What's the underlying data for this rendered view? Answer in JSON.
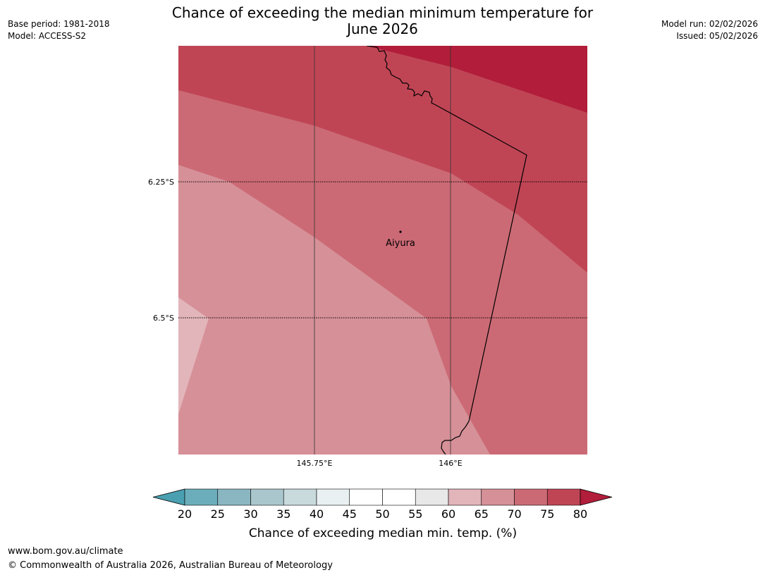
{
  "title_line1": "Chance of exceeding the median minimum temperature for",
  "title_line2": "June 2026",
  "meta_left": {
    "base_period": "Base period: 1981-2018",
    "model": "Model: ACCESS-S2"
  },
  "meta_right": {
    "model_run": "Model run: 02/02/2026",
    "issued": "Issued: 05/02/2026"
  },
  "map": {
    "lat_ticks": [
      "6.25°S",
      "6.5°S"
    ],
    "lon_ticks": [
      "145.75°E",
      "146°E"
    ],
    "place": "Aiyura"
  },
  "colorbar": {
    "label": "Chance of exceeding median min. temp. (%)",
    "ticks": [
      "20",
      "25",
      "30",
      "35",
      "40",
      "45",
      "50",
      "55",
      "60",
      "65",
      "70",
      "75",
      "80"
    ],
    "colors": [
      "#4aa0b0",
      "#6badbb",
      "#8ab6c2",
      "#a8c6cc",
      "#c9dadd",
      "#e9f0f1",
      "#ffffff",
      "#ffffff",
      "#e8e8e8",
      "#e2b5ba",
      "#d69098",
      "#cb6a75",
      "#bf4555",
      "#b11d3a"
    ]
  },
  "footer": {
    "url": "www.bom.gov.au/climate",
    "copyright": "© Commonwealth of Australia 2026, Australian Bureau of Meteorology"
  }
}
